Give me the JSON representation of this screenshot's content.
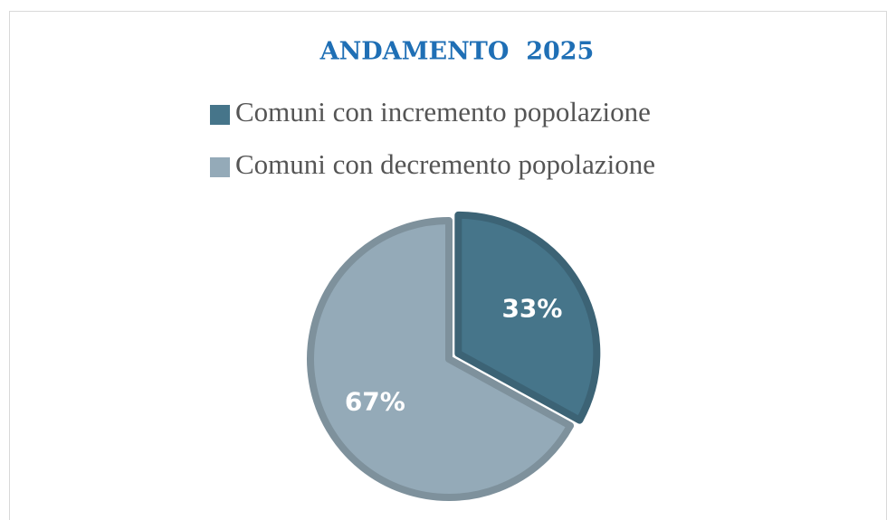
{
  "chart_data": {
    "type": "pie",
    "title": "ANDAMENTO  2025",
    "categories": [
      "Comuni con incremento popolazione",
      "Comuni con decremento popolazione"
    ],
    "values": [
      33,
      67
    ],
    "value_labels": [
      "33%",
      "67%"
    ],
    "colors": [
      "#46758a",
      "#94aab8"
    ],
    "legend": "top"
  }
}
